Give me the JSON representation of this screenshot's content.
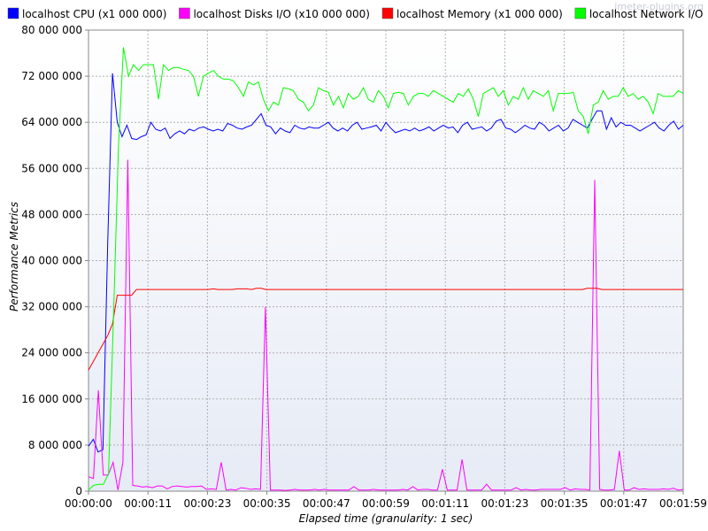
{
  "watermark": "jmeter-plugins.org",
  "chart_data": {
    "type": "line",
    "title": "",
    "xlabel": "Elapsed time (granularity: 1 sec)",
    "ylabel": "Performance Metrics",
    "ylim": [
      0,
      80000000
    ],
    "xlim_seconds": [
      0,
      119
    ],
    "y_ticks": [
      "0",
      "8 000 000",
      "16 000 000",
      "24 000 000",
      "32 000 000",
      "40 000 000",
      "48 000 000",
      "56 000 000",
      "64 000 000",
      "72 000 000",
      "80 000 000"
    ],
    "x_ticks": [
      "00:00:00",
      "00:00:11",
      "00:00:23",
      "00:00:35",
      "00:00:47",
      "00:00:59",
      "00:01:11",
      "00:01:23",
      "00:01:35",
      "00:01:47",
      "00:01:59"
    ],
    "grid": true,
    "legend_position": "top",
    "series": [
      {
        "name": "localhost CPU (x1 000 000)",
        "color": "#0000ff",
        "values": [
          7800000,
          9000000,
          6800000,
          7200000,
          43000000,
          72500000,
          64000000,
          61500000,
          63500000,
          61200000,
          61000000,
          61500000,
          61800000,
          64000000,
          62800000,
          62500000,
          63000000,
          61200000,
          62000000,
          62500000,
          62000000,
          62800000,
          62500000,
          63000000,
          63200000,
          62800000,
          62500000,
          62800000,
          62500000,
          63800000,
          63500000,
          63000000,
          62800000,
          63200000,
          63500000,
          64500000,
          65500000,
          63500000,
          63200000,
          62000000,
          63000000,
          62500000,
          62200000,
          63500000,
          63000000,
          62800000,
          63200000,
          63000000,
          63000000,
          63500000,
          64000000,
          63000000,
          62500000,
          63000000,
          62500000,
          63500000,
          64000000,
          62800000,
          63000000,
          63200000,
          63500000,
          62500000,
          64000000,
          63000000,
          62200000,
          62500000,
          62800000,
          62500000,
          63000000,
          62500000,
          62800000,
          63200000,
          62500000,
          63000000,
          63500000,
          63000000,
          63200000,
          62200000,
          63500000,
          64000000,
          62800000,
          63000000,
          63200000,
          62500000,
          63000000,
          64200000,
          64500000,
          63000000,
          62800000,
          62200000,
          62800000,
          63500000,
          63000000,
          62800000,
          64000000,
          63500000,
          62500000,
          63000000,
          63500000,
          62500000,
          63000000,
          64500000,
          64000000,
          63500000,
          63000000,
          64500000,
          66000000,
          66000000,
          62800000,
          64800000,
          63200000,
          64000000,
          63500000,
          63500000,
          63000000,
          62500000,
          63000000,
          63500000,
          64000000,
          63000000,
          62500000,
          63500000,
          64200000,
          62800000,
          63500000
        ],
        "note_values_per_second": true
      },
      {
        "name": "localhost Disks I/O (x10 000 000)",
        "color": "#ff00ff",
        "values": [
          2500000,
          2200000,
          17500000,
          2800000,
          2800000,
          5000000,
          200000,
          5000000,
          57500000,
          1000000,
          900000,
          700000,
          800000,
          600000,
          900000,
          900000,
          400000,
          800000,
          900000,
          800000,
          700000,
          800000,
          800000,
          900000,
          300000,
          400000,
          300000,
          5000000,
          200000,
          300000,
          200000,
          600000,
          500000,
          300000,
          400000,
          300000,
          32000000,
          200000,
          200000,
          200000,
          100000,
          200000,
          300000,
          200000,
          200000,
          200000,
          300000,
          200000,
          300000,
          200000,
          200000,
          200000,
          200000,
          200000,
          800000,
          200000,
          200000,
          200000,
          300000,
          200000,
          200000,
          200000,
          200000,
          200000,
          300000,
          200000,
          800000,
          200000,
          300000,
          300000,
          200000,
          200000,
          3800000,
          200000,
          200000,
          200000,
          5500000,
          200000,
          200000,
          200000,
          200000,
          1200000,
          200000,
          200000,
          200000,
          200000,
          200000,
          600000,
          200000,
          300000,
          200000,
          200000,
          300000,
          300000,
          300000,
          300000,
          300000,
          600000,
          200000,
          400000,
          300000,
          300000,
          200000,
          54000000,
          300000,
          200000,
          200000,
          300000,
          7000000,
          200000,
          200000,
          600000,
          300000,
          400000,
          300000,
          300000,
          300000,
          400000,
          300000,
          500000,
          200000,
          300000
        ],
        "note_values_per_second": true
      },
      {
        "name": "localhost Memory (x1 000 000)",
        "color": "#ff0000",
        "values": [
          21000000,
          22500000,
          24000000,
          25500000,
          27000000,
          29000000,
          34000000,
          34000000,
          34000000,
          34000000,
          35000000,
          35000000,
          35000000,
          35000000,
          35000000,
          35000000,
          35000000,
          35000000,
          35000000,
          35000000,
          35000000,
          35000000,
          35000000,
          35000000,
          35000000,
          35000000,
          35100000,
          35000000,
          35000000,
          35000000,
          35000000,
          35100000,
          35100000,
          35100000,
          35000000,
          35200000,
          35200000,
          35000000,
          35000000,
          35000000,
          35000000,
          35000000,
          35000000,
          35000000,
          35000000,
          35000000,
          35000000,
          35000000,
          35000000,
          35000000,
          35000000,
          35000000,
          35000000,
          35000000,
          35000000,
          35000000,
          35000000,
          35000000,
          35000000,
          35000000,
          35000000,
          35000000,
          35000000,
          35000000,
          35000000,
          35000000,
          35000000,
          35000000,
          35000000,
          35000000,
          35000000,
          35000000,
          35000000,
          35000000,
          35000000,
          35000000,
          35000000,
          35000000,
          35000000,
          35000000,
          35000000,
          35000000,
          35000000,
          35000000,
          35000000,
          35000000,
          35000000,
          35000000,
          35000000,
          35000000,
          35000000,
          35000000,
          35000000,
          35000000,
          35000000,
          35000000,
          35000000,
          35000000,
          35000000,
          35000000,
          35000000,
          35000000,
          35000000,
          35000000,
          35200000,
          35200000,
          35200000,
          35000000,
          35000000,
          35000000,
          35000000,
          35000000,
          35000000,
          35000000,
          35000000,
          35000000,
          35000000,
          35000000,
          35000000,
          35000000,
          35000000,
          35000000,
          35000000,
          35000000,
          35000000
        ]
      },
      {
        "name": "localhost Network I/O",
        "color": "#00ff00",
        "values": [
          200000,
          1000000,
          1200000,
          1200000,
          3000000,
          30000000,
          60000000,
          77000000,
          72000000,
          74000000,
          73000000,
          74000000,
          74000000,
          74000000,
          68000000,
          74000000,
          73000000,
          73500000,
          73500000,
          73200000,
          73000000,
          72000000,
          68500000,
          72000000,
          72500000,
          73000000,
          72000000,
          71500000,
          71500000,
          71200000,
          70000000,
          68500000,
          71000000,
          70500000,
          71000000,
          68000000,
          66000000,
          67500000,
          67000000,
          70000000,
          69800000,
          69500000,
          68000000,
          67500000,
          66000000,
          67000000,
          70000000,
          69500000,
          69200000,
          67000000,
          68500000,
          66500000,
          69000000,
          68000000,
          68500000,
          70000000,
          68000000,
          67500000,
          69500000,
          68500000,
          66500000,
          69000000,
          69200000,
          69000000,
          67000000,
          68500000,
          69000000,
          69000000,
          68500000,
          69500000,
          69000000,
          68500000,
          68000000,
          67500000,
          69000000,
          68500000,
          69800000,
          68000000,
          65000000,
          69000000,
          69500000,
          70000000,
          68500000,
          69500000,
          67000000,
          68500000,
          68000000,
          70000000,
          68000000,
          69500000,
          69000000,
          68500000,
          69500000,
          66000000,
          69000000,
          69000000,
          69000000,
          69200000,
          66000000,
          65000000,
          62000000,
          67000000,
          67500000,
          69500000,
          68000000,
          68500000,
          68500000,
          70000000,
          68500000,
          69000000,
          68000000,
          68500000,
          67500000,
          65500000,
          69000000,
          68500000,
          68500000,
          68500000,
          69500000,
          69000000
        ]
      }
    ]
  }
}
